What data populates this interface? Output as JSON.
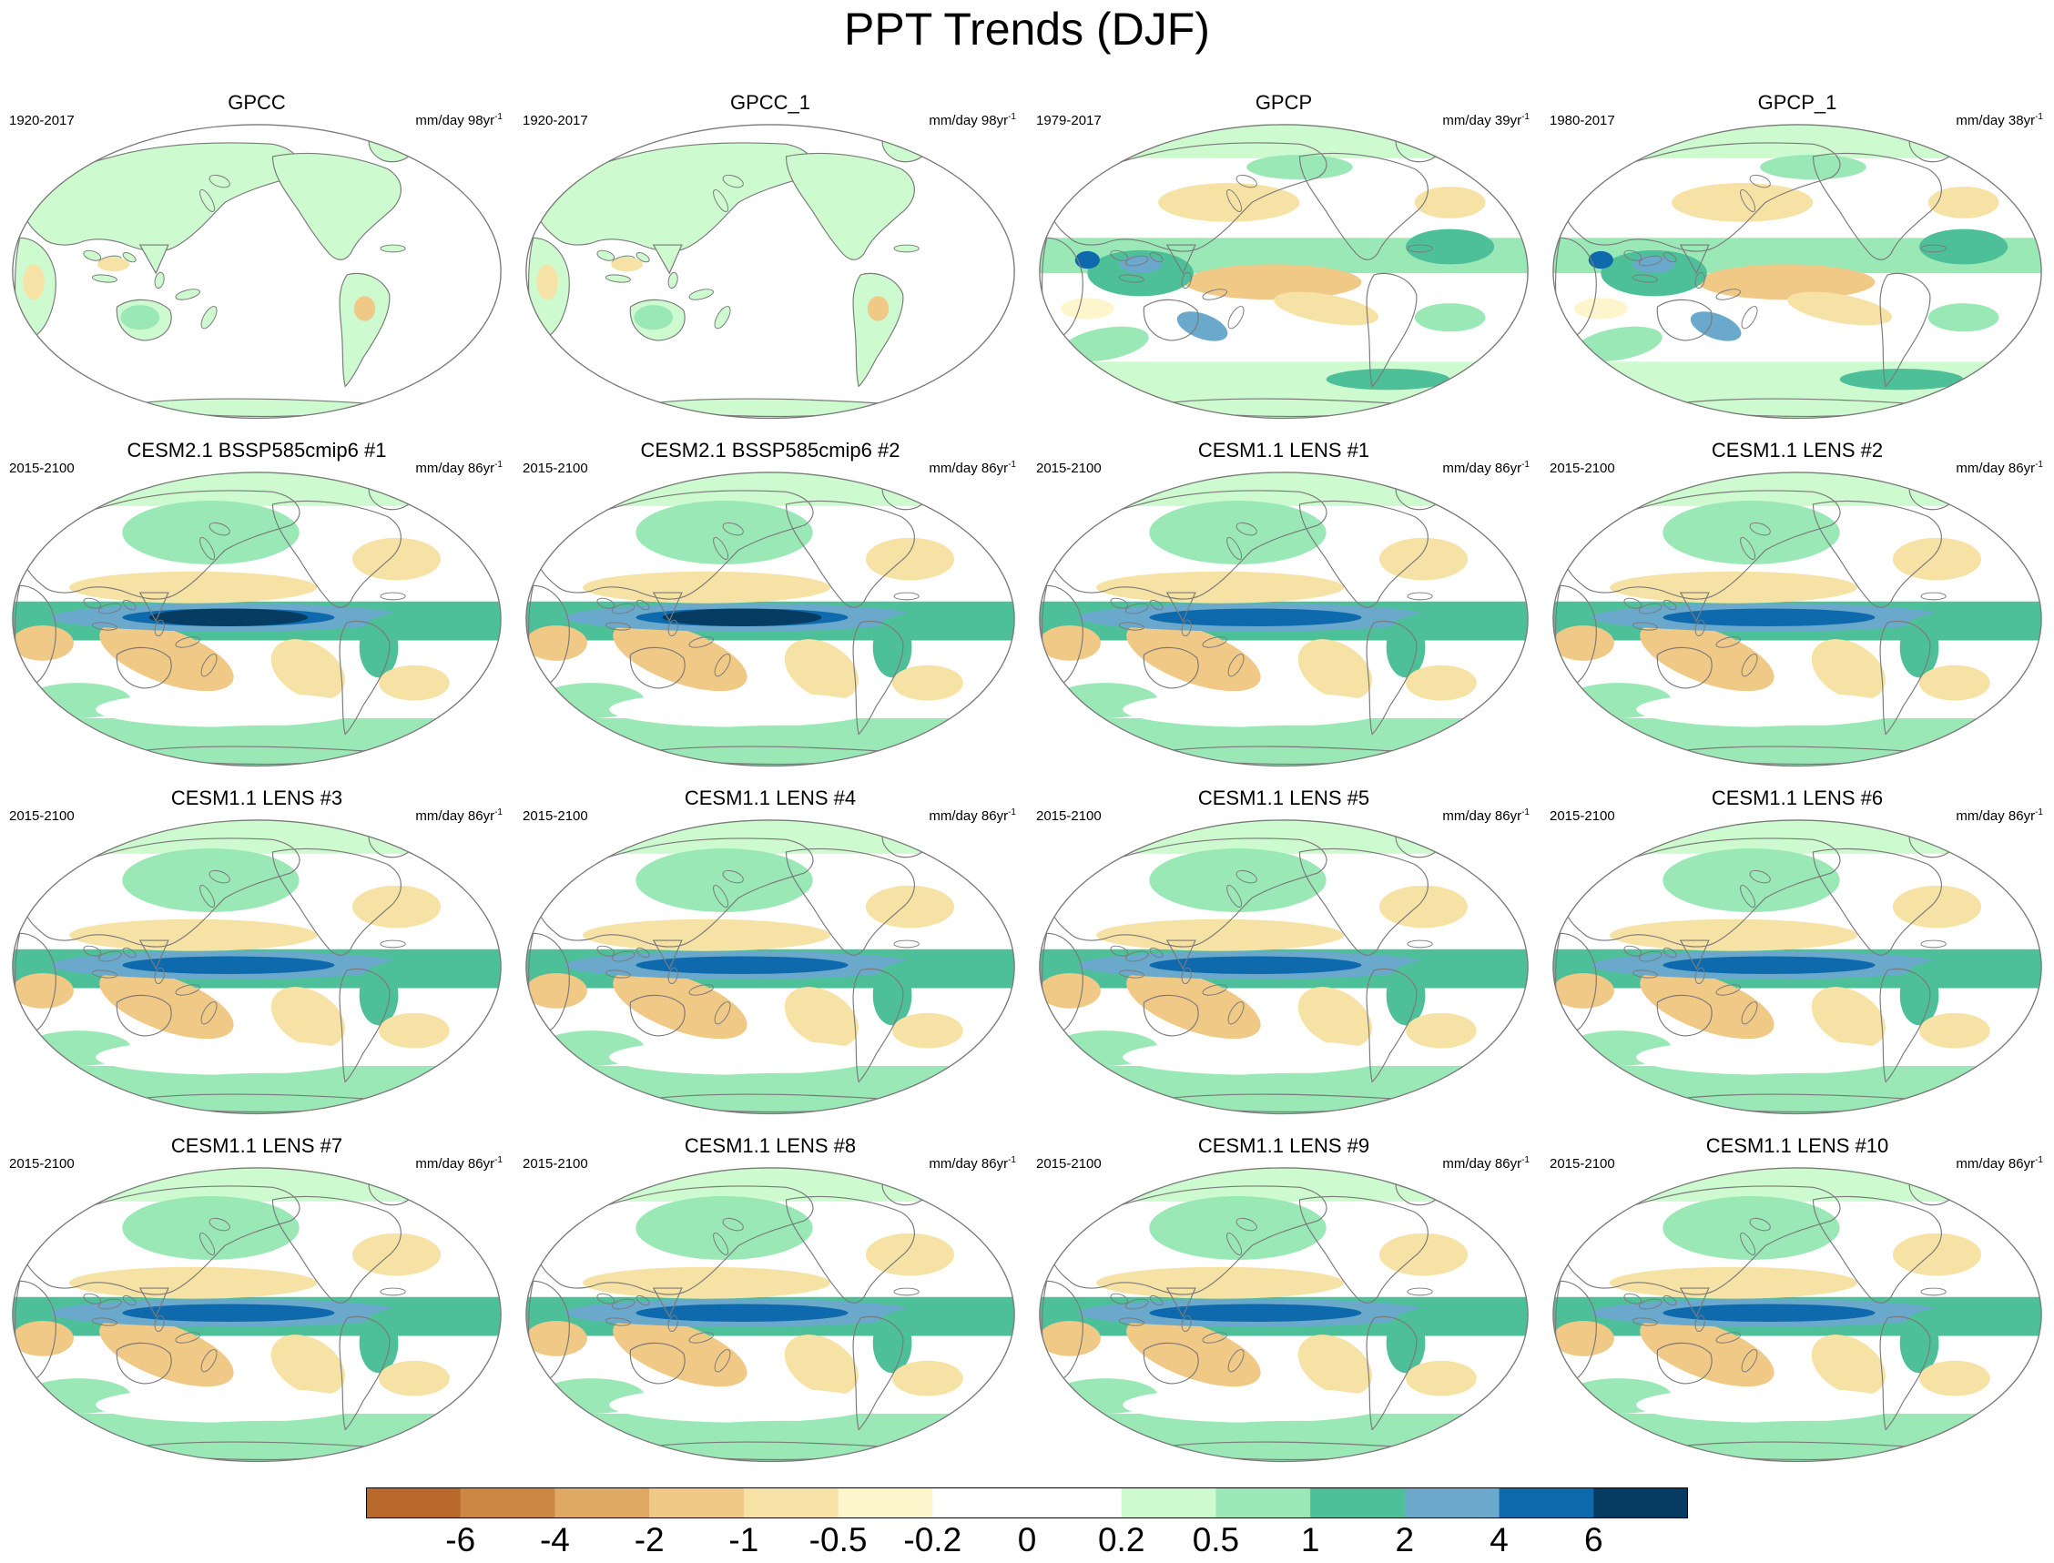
{
  "figure": {
    "title": "PPT Trends (DJF)"
  },
  "palette": {
    "outline": "#7a7a7a",
    "ocean": "#ffffff"
  },
  "chart_data": {
    "type": "map-grid",
    "projection": "Robinson (Pacific-centered)",
    "variable": "precipitation trend",
    "season": "DJF",
    "panels": [
      {
        "title": "GPCC",
        "period": "1920-2017",
        "units": "mm/day 98yr",
        "units_exp": "-1",
        "pattern": "obs-land"
      },
      {
        "title": "GPCC_1",
        "period": "1920-2017",
        "units": "mm/day 98yr",
        "units_exp": "-1",
        "pattern": "obs-land"
      },
      {
        "title": "GPCP",
        "period": "1979-2017",
        "units": "mm/day 39yr",
        "units_exp": "-1",
        "pattern": "obs-global"
      },
      {
        "title": "GPCP_1",
        "period": "1980-2017",
        "units": "mm/day 38yr",
        "units_exp": "-1",
        "pattern": "obs-global"
      },
      {
        "title": "CESM2.1 BSSP585cmip6 #1",
        "period": "2015-2100",
        "units": "mm/day 86yr",
        "units_exp": "-1",
        "pattern": "strong"
      },
      {
        "title": "CESM2.1 BSSP585cmip6 #2",
        "period": "2015-2100",
        "units": "mm/day 86yr",
        "units_exp": "-1",
        "pattern": "strong"
      },
      {
        "title": "CESM1.1 LENS #1",
        "period": "2015-2100",
        "units": "mm/day 86yr",
        "units_exp": "-1",
        "pattern": "model"
      },
      {
        "title": "CESM1.1 LENS #2",
        "period": "2015-2100",
        "units": "mm/day 86yr",
        "units_exp": "-1",
        "pattern": "model"
      },
      {
        "title": "CESM1.1 LENS #3",
        "period": "2015-2100",
        "units": "mm/day 86yr",
        "units_exp": "-1",
        "pattern": "model"
      },
      {
        "title": "CESM1.1 LENS #4",
        "period": "2015-2100",
        "units": "mm/day 86yr",
        "units_exp": "-1",
        "pattern": "model"
      },
      {
        "title": "CESM1.1 LENS #5",
        "period": "2015-2100",
        "units": "mm/day 86yr",
        "units_exp": "-1",
        "pattern": "model"
      },
      {
        "title": "CESM1.1 LENS #6",
        "period": "2015-2100",
        "units": "mm/day 86yr",
        "units_exp": "-1",
        "pattern": "model"
      },
      {
        "title": "CESM1.1 LENS #7",
        "period": "2015-2100",
        "units": "mm/day 86yr",
        "units_exp": "-1",
        "pattern": "model"
      },
      {
        "title": "CESM1.1 LENS #8",
        "period": "2015-2100",
        "units": "mm/day 86yr",
        "units_exp": "-1",
        "pattern": "model"
      },
      {
        "title": "CESM1.1 LENS #9",
        "period": "2015-2100",
        "units": "mm/day 86yr",
        "units_exp": "-1",
        "pattern": "model"
      },
      {
        "title": "CESM1.1 LENS #10",
        "period": "2015-2100",
        "units": "mm/day 86yr",
        "units_exp": "-1",
        "pattern": "model"
      }
    ],
    "colorbar": {
      "levels": [
        "-6",
        "-4",
        "-2",
        "-1",
        "-0.5",
        "-0.2",
        "0",
        "0.2",
        "0.5",
        "1",
        "2",
        "4",
        "6"
      ],
      "colors": [
        "#b8692b",
        "#cc8745",
        "#dfa865",
        "#f1c987",
        "#f7e2a6",
        "#fdf5cc",
        "#ffffff",
        "#ffffff",
        "#cdfacf",
        "#9ae8b6",
        "#4dbf99",
        "#6aa9cb",
        "#0f6aad",
        "#063c61"
      ]
    }
  }
}
